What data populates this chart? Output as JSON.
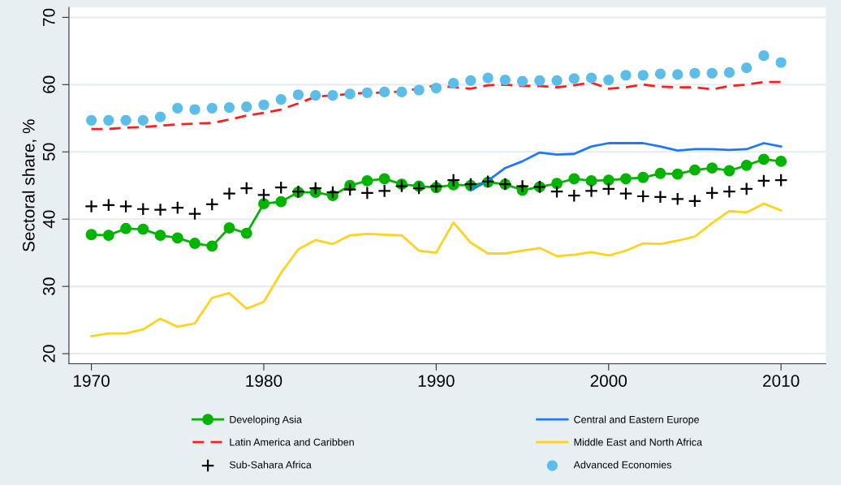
{
  "chart_data": {
    "type": "line",
    "ylabel": "Sectoral share, %",
    "x": [
      1970,
      1971,
      1972,
      1973,
      1974,
      1975,
      1976,
      1977,
      1978,
      1979,
      1980,
      1981,
      1982,
      1983,
      1984,
      1985,
      1986,
      1987,
      1988,
      1989,
      1990,
      1991,
      1992,
      1993,
      1994,
      1995,
      1996,
      1997,
      1998,
      1999,
      2000,
      2001,
      2002,
      2003,
      2004,
      2005,
      2006,
      2007,
      2008,
      2009,
      2010
    ],
    "xlim": [
      1968.7,
      2012.6
    ],
    "xticks": [
      1970,
      1980,
      1990,
      2000,
      2010
    ],
    "ylim": [
      18.5,
      71.5
    ],
    "yticks": [
      20,
      30,
      40,
      50,
      60,
      70
    ],
    "grid": "y",
    "legend": "bottom",
    "series": [
      {
        "name": "Developing Asia",
        "color": "#00b400",
        "marker": "circle",
        "line_style": "solid",
        "values": [
          37.7,
          37.6,
          38.6,
          38.5,
          37.6,
          37.2,
          36.4,
          36.0,
          38.7,
          37.9,
          42.3,
          42.6,
          44.0,
          44.0,
          43.5,
          45.0,
          45.7,
          46.0,
          45.2,
          44.9,
          44.7,
          45.1,
          45.0,
          45.5,
          45.2,
          44.3,
          44.8,
          45.3,
          46.0,
          45.7,
          45.8,
          46.0,
          46.2,
          46.8,
          46.7,
          47.3,
          47.6,
          47.2,
          48.0,
          48.9,
          48.6
        ]
      },
      {
        "name": "Latin America and Caribben",
        "color": "#ff1e1e",
        "marker": "none",
        "line_style": "dashed",
        "values": [
          53.4,
          53.4,
          53.6,
          53.7,
          53.9,
          54.1,
          54.2,
          54.3,
          54.8,
          55.4,
          55.8,
          56.3,
          57.2,
          58.2,
          58.4,
          58.6,
          58.8,
          58.8,
          59.0,
          59.4,
          59.9,
          59.6,
          59.4,
          59.9,
          60.0,
          59.8,
          59.8,
          59.6,
          59.9,
          60.3,
          59.4,
          59.6,
          60.0,
          59.7,
          59.6,
          59.6,
          59.3,
          59.8,
          60.0,
          60.4,
          60.4
        ]
      },
      {
        "name": "Sub-Sahara Africa",
        "type": "scatter",
        "color": "#000000",
        "marker": "cross",
        "values": [
          41.9,
          42.1,
          41.9,
          41.5,
          41.4,
          41.7,
          40.8,
          42.2,
          43.8,
          44.6,
          43.6,
          44.7,
          44.1,
          44.6,
          44.0,
          44.4,
          43.9,
          44.2,
          44.9,
          44.6,
          44.9,
          45.8,
          45.2,
          45.6,
          45.2,
          44.9,
          44.8,
          44.1,
          43.5,
          44.2,
          44.5,
          43.8,
          43.4,
          43.3,
          43.0,
          42.7,
          43.9,
          44.1,
          44.5,
          45.7,
          45.8
        ]
      },
      {
        "name": "Central and Eastern Europe",
        "color": "#1e78ff",
        "marker": "none",
        "line_style": "solid",
        "values": [
          null,
          null,
          null,
          null,
          null,
          null,
          null,
          null,
          null,
          null,
          null,
          null,
          null,
          null,
          null,
          null,
          null,
          null,
          null,
          null,
          null,
          null,
          44.3,
          45.7,
          47.6,
          48.6,
          49.9,
          49.6,
          49.7,
          50.8,
          51.3,
          51.3,
          51.3,
          50.8,
          50.2,
          50.4,
          50.4,
          50.3,
          50.4,
          51.3,
          50.8
        ]
      },
      {
        "name": "Middle East and North Africa",
        "color": "#ffd21e",
        "marker": "none",
        "line_style": "solid",
        "values": [
          22.6,
          23.0,
          23.0,
          23.6,
          25.2,
          24.0,
          24.5,
          28.3,
          29.0,
          26.7,
          27.7,
          32.0,
          35.5,
          36.9,
          36.3,
          37.6,
          37.8,
          37.7,
          37.6,
          35.3,
          35.0,
          39.5,
          36.5,
          34.9,
          34.9,
          35.3,
          35.7,
          34.5,
          34.7,
          35.1,
          34.6,
          35.3,
          36.4,
          36.3,
          36.8,
          37.4,
          39.4,
          41.2,
          41.0,
          42.3,
          41.3
        ]
      },
      {
        "name": "Advanced Economies",
        "type": "scatter",
        "color": "#5bbde8",
        "marker": "circle",
        "values": [
          54.7,
          54.7,
          54.7,
          54.7,
          55.2,
          56.5,
          56.3,
          56.5,
          56.6,
          56.7,
          57.0,
          57.8,
          58.5,
          58.4,
          58.4,
          58.6,
          58.8,
          58.9,
          58.9,
          59.2,
          59.5,
          60.2,
          60.6,
          61.0,
          60.7,
          60.5,
          60.6,
          60.6,
          60.9,
          61.0,
          60.7,
          61.4,
          61.4,
          61.6,
          61.5,
          61.7,
          61.7,
          61.8,
          62.5,
          64.3,
          63.3
        ]
      }
    ]
  }
}
